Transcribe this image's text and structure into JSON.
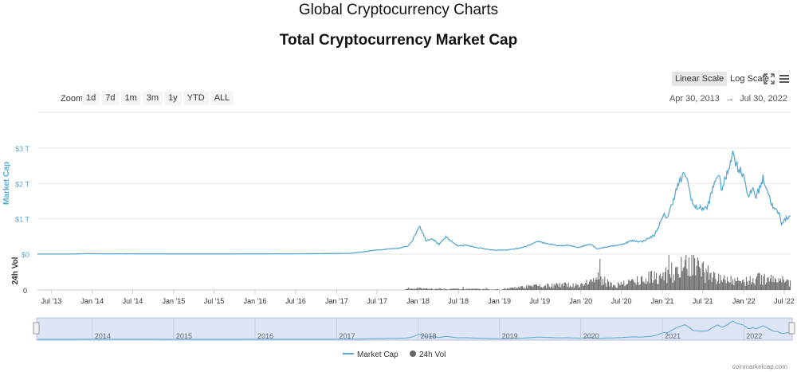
{
  "header": {
    "page_title": "Global Cryptocurrency Charts",
    "chart_title": "Total Cryptocurrency Market Cap"
  },
  "toolbar": {
    "scales": [
      {
        "label": "Linear Scale",
        "active": true
      },
      {
        "label": "Log Scale",
        "active": false
      }
    ],
    "fullscreen_icon": "fullscreen-icon",
    "menu_icon": "hamburger-menu-icon"
  },
  "zoom": {
    "label": "Zoom",
    "buttons": [
      "1d",
      "7d",
      "1m",
      "3m",
      "1y",
      "YTD",
      "ALL"
    ]
  },
  "range": {
    "from": "Apr 30, 2013",
    "arrow": "→",
    "to": "Jul 30, 2022"
  },
  "attribution": "coinmarketcap.com",
  "chart_data": {
    "type": "line",
    "x_range": [
      "2013-04-30",
      "2022-07-30"
    ],
    "x_ticks": [
      "Jul '13",
      "Jan '14",
      "Jul '14",
      "Jan '15",
      "Jul '15",
      "Jan '16",
      "Jul '16",
      "Jan '17",
      "Jul '17",
      "Jan '18",
      "Jul '18",
      "Jan '19",
      "Jul '19",
      "Jan '20",
      "Jul '20",
      "Jan '21",
      "Jul '21",
      "Jan '22",
      "Jul '22"
    ],
    "ylabel": "Market Cap",
    "y_ticks": [
      "$0",
      "$1 T",
      "$2 T",
      "$3 T"
    ],
    "ylim": [
      0,
      3000
    ],
    "y_unit": "B USD",
    "volume_label": "24h Vol",
    "volume_ticks": [
      "0"
    ],
    "navigator_ticks": [
      "2014",
      "2015",
      "2016",
      "2017",
      "2018",
      "2019",
      "2020",
      "2021",
      "2022"
    ],
    "legend": [
      {
        "name": "Market Cap",
        "color": "#5aa9d1",
        "symbol": "line"
      },
      {
        "name": "24h Vol",
        "color": "#666666",
        "symbol": "circle"
      }
    ],
    "legend_position": "bottom-center",
    "grid": true,
    "series": [
      {
        "name": "Market Cap",
        "x": [
          "2013-04-30",
          "2013-07-01",
          "2013-10-01",
          "2013-12-05",
          "2014-03-01",
          "2014-07-01",
          "2015-01-01",
          "2015-07-01",
          "2016-01-01",
          "2016-07-01",
          "2017-01-01",
          "2017-03-01",
          "2017-05-15",
          "2017-06-15",
          "2017-08-01",
          "2017-09-01",
          "2017-10-01",
          "2017-11-15",
          "2017-12-10",
          "2018-01-07",
          "2018-02-06",
          "2018-03-05",
          "2018-04-06",
          "2018-05-05",
          "2018-06-29",
          "2018-08-01",
          "2018-09-01",
          "2018-11-25",
          "2018-12-15",
          "2019-02-01",
          "2019-04-05",
          "2019-05-15",
          "2019-06-26",
          "2019-08-01",
          "2019-09-25",
          "2019-11-01",
          "2019-12-20",
          "2020-02-15",
          "2020-03-13",
          "2020-05-01",
          "2020-07-01",
          "2020-08-15",
          "2020-10-01",
          "2020-11-25",
          "2021-01-08",
          "2021-01-25",
          "2021-02-21",
          "2021-03-15",
          "2021-04-14",
          "2021-05-20",
          "2021-06-22",
          "2021-07-20",
          "2021-08-20",
          "2021-09-05",
          "2021-09-25",
          "2021-10-20",
          "2021-11-10",
          "2021-12-05",
          "2022-01-01",
          "2022-01-24",
          "2022-02-10",
          "2022-02-24",
          "2022-03-29",
          "2022-04-15",
          "2022-05-12",
          "2022-06-10",
          "2022-06-18",
          "2022-07-07",
          "2022-07-30"
        ],
        "values": [
          1.5,
          1.2,
          2,
          14,
          9,
          8,
          5,
          4,
          7,
          10,
          17,
          22,
          75,
          110,
          130,
          150,
          160,
          220,
          420,
          820,
          380,
          450,
          270,
          480,
          230,
          260,
          210,
          120,
          110,
          115,
          170,
          250,
          360,
          300,
          230,
          250,
          190,
          290,
          150,
          210,
          270,
          380,
          350,
          530,
          1100,
          1050,
          1600,
          2000,
          2300,
          1350,
          1300,
          1300,
          1950,
          2300,
          1850,
          2300,
          2900,
          2450,
          2250,
          1550,
          1900,
          1600,
          2150,
          1850,
          1300,
          1150,
          880,
          980,
          1100
        ]
      },
      {
        "name": "24h Vol",
        "x": [
          "2017-11-01",
          "2018-01-01",
          "2018-06-01",
          "2019-01-01",
          "2019-06-01",
          "2020-01-01",
          "2020-03-15",
          "2020-06-01",
          "2021-01-01",
          "2021-05-15",
          "2021-09-01",
          "2022-01-01",
          "2022-05-15",
          "2022-07-30"
        ],
        "values": [
          10,
          20,
          15,
          8,
          50,
          70,
          150,
          60,
          200,
          330,
          140,
          120,
          170,
          90
        ]
      }
    ]
  }
}
